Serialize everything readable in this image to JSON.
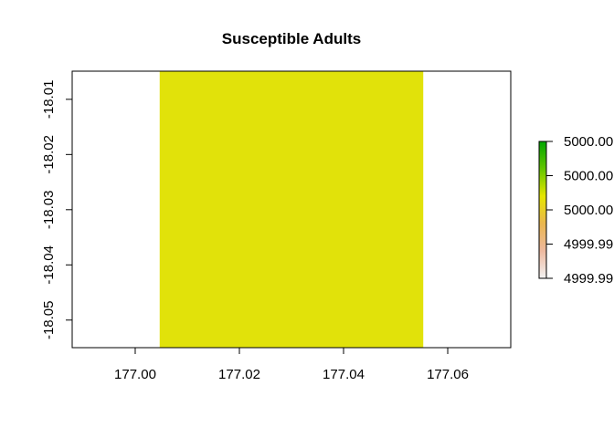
{
  "chart_data": {
    "type": "heatmap",
    "title": "Susceptible Adults",
    "xlabel": "",
    "ylabel": "",
    "xlim": [
      176.9879,
      177.0721
    ],
    "ylim": [
      -18.055,
      -18.0049
    ],
    "x_ticks": [
      "177.00",
      "177.02",
      "177.04",
      "177.06"
    ],
    "x_tick_values": [
      177.0,
      177.02,
      177.04,
      177.06
    ],
    "y_ticks": [
      "-18.01",
      "-18.02",
      "-18.03",
      "-18.04",
      "-18.05"
    ],
    "y_tick_values": [
      -18.01,
      -18.02,
      -18.03,
      -18.04,
      -18.05
    ],
    "raster": {
      "xmin": 177.0047,
      "xmax": 177.0553,
      "ymin": -18.055,
      "ymax": -18.0049,
      "value": 5000.0,
      "color": "#E1E20A"
    },
    "legend": {
      "placement": "right",
      "tick_labels": [
        "5000.00",
        "5000.00",
        "5000.00",
        "4999.99",
        "4999.99"
      ],
      "colors": [
        "#00A600",
        "#63C600",
        "#E6E600",
        "#EAB64E",
        "#EEB99F",
        "#F2F2F2"
      ]
    },
    "grid": false
  }
}
